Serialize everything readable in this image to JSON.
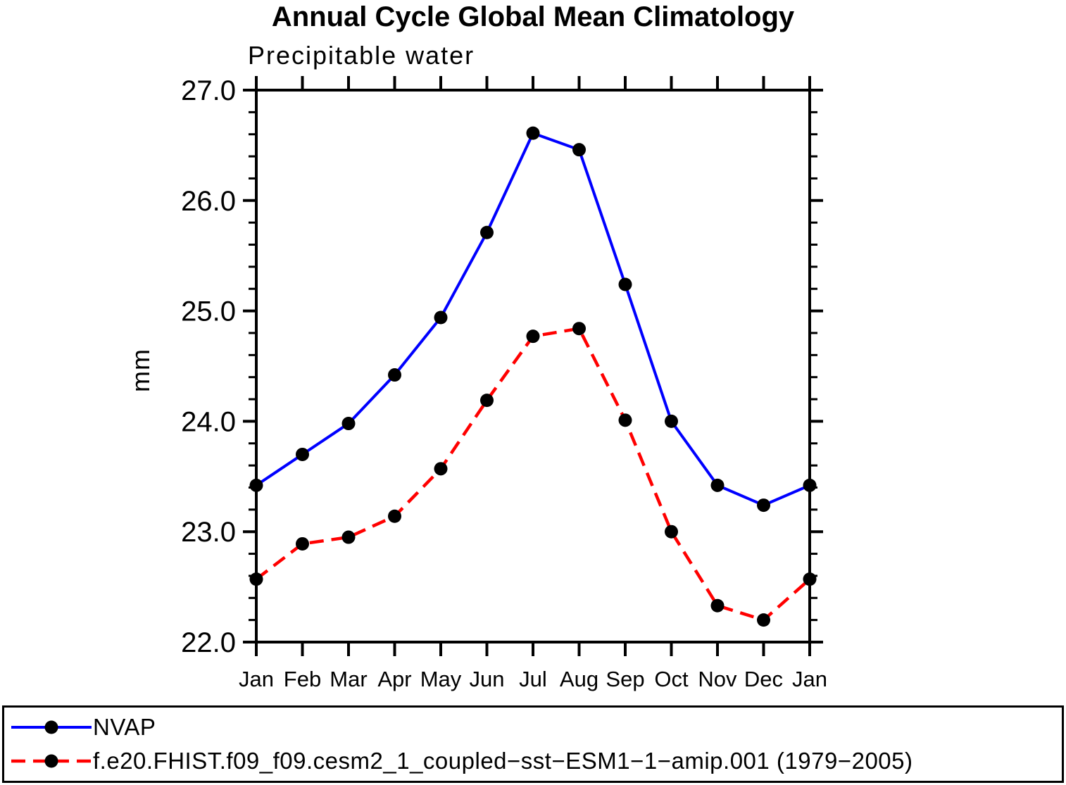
{
  "title": "Annual Cycle Global Mean Climatology",
  "subtitle": "Precipitable water",
  "y_axis": {
    "label": "mm"
  },
  "chart_data": {
    "type": "line",
    "title": "Annual Cycle Global Mean Climatology",
    "subtitle": "Precipitable water",
    "ylabel": "mm",
    "xlabel": "",
    "x_categories": [
      "Jan",
      "Feb",
      "Mar",
      "Apr",
      "May",
      "Jun",
      "Jul",
      "Aug",
      "Sep",
      "Oct",
      "Nov",
      "Dec",
      "Jan"
    ],
    "ylim": [
      22.0,
      27.0
    ],
    "y_major_step": 1.0,
    "y_minor_step": 0.2,
    "y_tick_labels": [
      "22.0",
      "23.0",
      "24.0",
      "25.0",
      "26.0",
      "27.0"
    ],
    "grid": false,
    "frame_color": "#000000",
    "marker": "filled-circle",
    "marker_color": "#000000",
    "legend_position": "bottom-box-full-width",
    "series": [
      {
        "name": "NVAP",
        "color": "#0000ff",
        "dash": "solid",
        "values": [
          23.42,
          23.7,
          23.98,
          24.42,
          24.94,
          25.71,
          26.61,
          26.46,
          25.24,
          24.0,
          23.42,
          23.24,
          23.42
        ]
      },
      {
        "name": "f.e20.FHIST.f09_f09.cesm2_1_coupled−sst−ESM1−1−amip.001 (1979−2005)",
        "color": "#ff0000",
        "dash": "dashed",
        "values": [
          22.57,
          22.89,
          22.95,
          23.14,
          23.57,
          24.19,
          24.77,
          24.84,
          24.01,
          23.0,
          22.33,
          22.2,
          22.57
        ]
      }
    ]
  }
}
